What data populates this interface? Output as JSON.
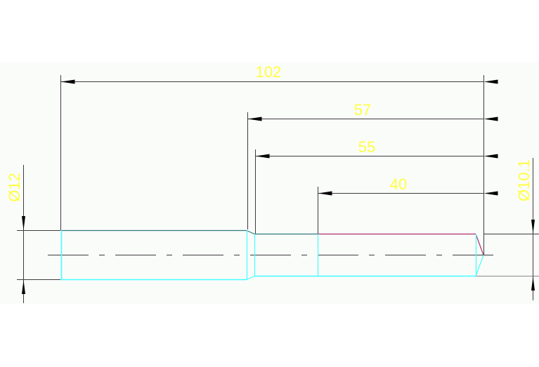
{
  "colors": {
    "background": "#fafcfa",
    "dimension_line": "#3c3c3c",
    "dimension_text": "#ffff44",
    "part_outline": "#44ffff",
    "part_edge_dark": "#2f7a80",
    "highlight": "#b0306a",
    "center_line": "#3c3c3c"
  },
  "dimensions": {
    "overall_length": "102",
    "length_57": "57",
    "length_55": "55",
    "length_40": "40",
    "diameter_left": "Ø12",
    "diameter_right": "Ø10.1"
  }
}
